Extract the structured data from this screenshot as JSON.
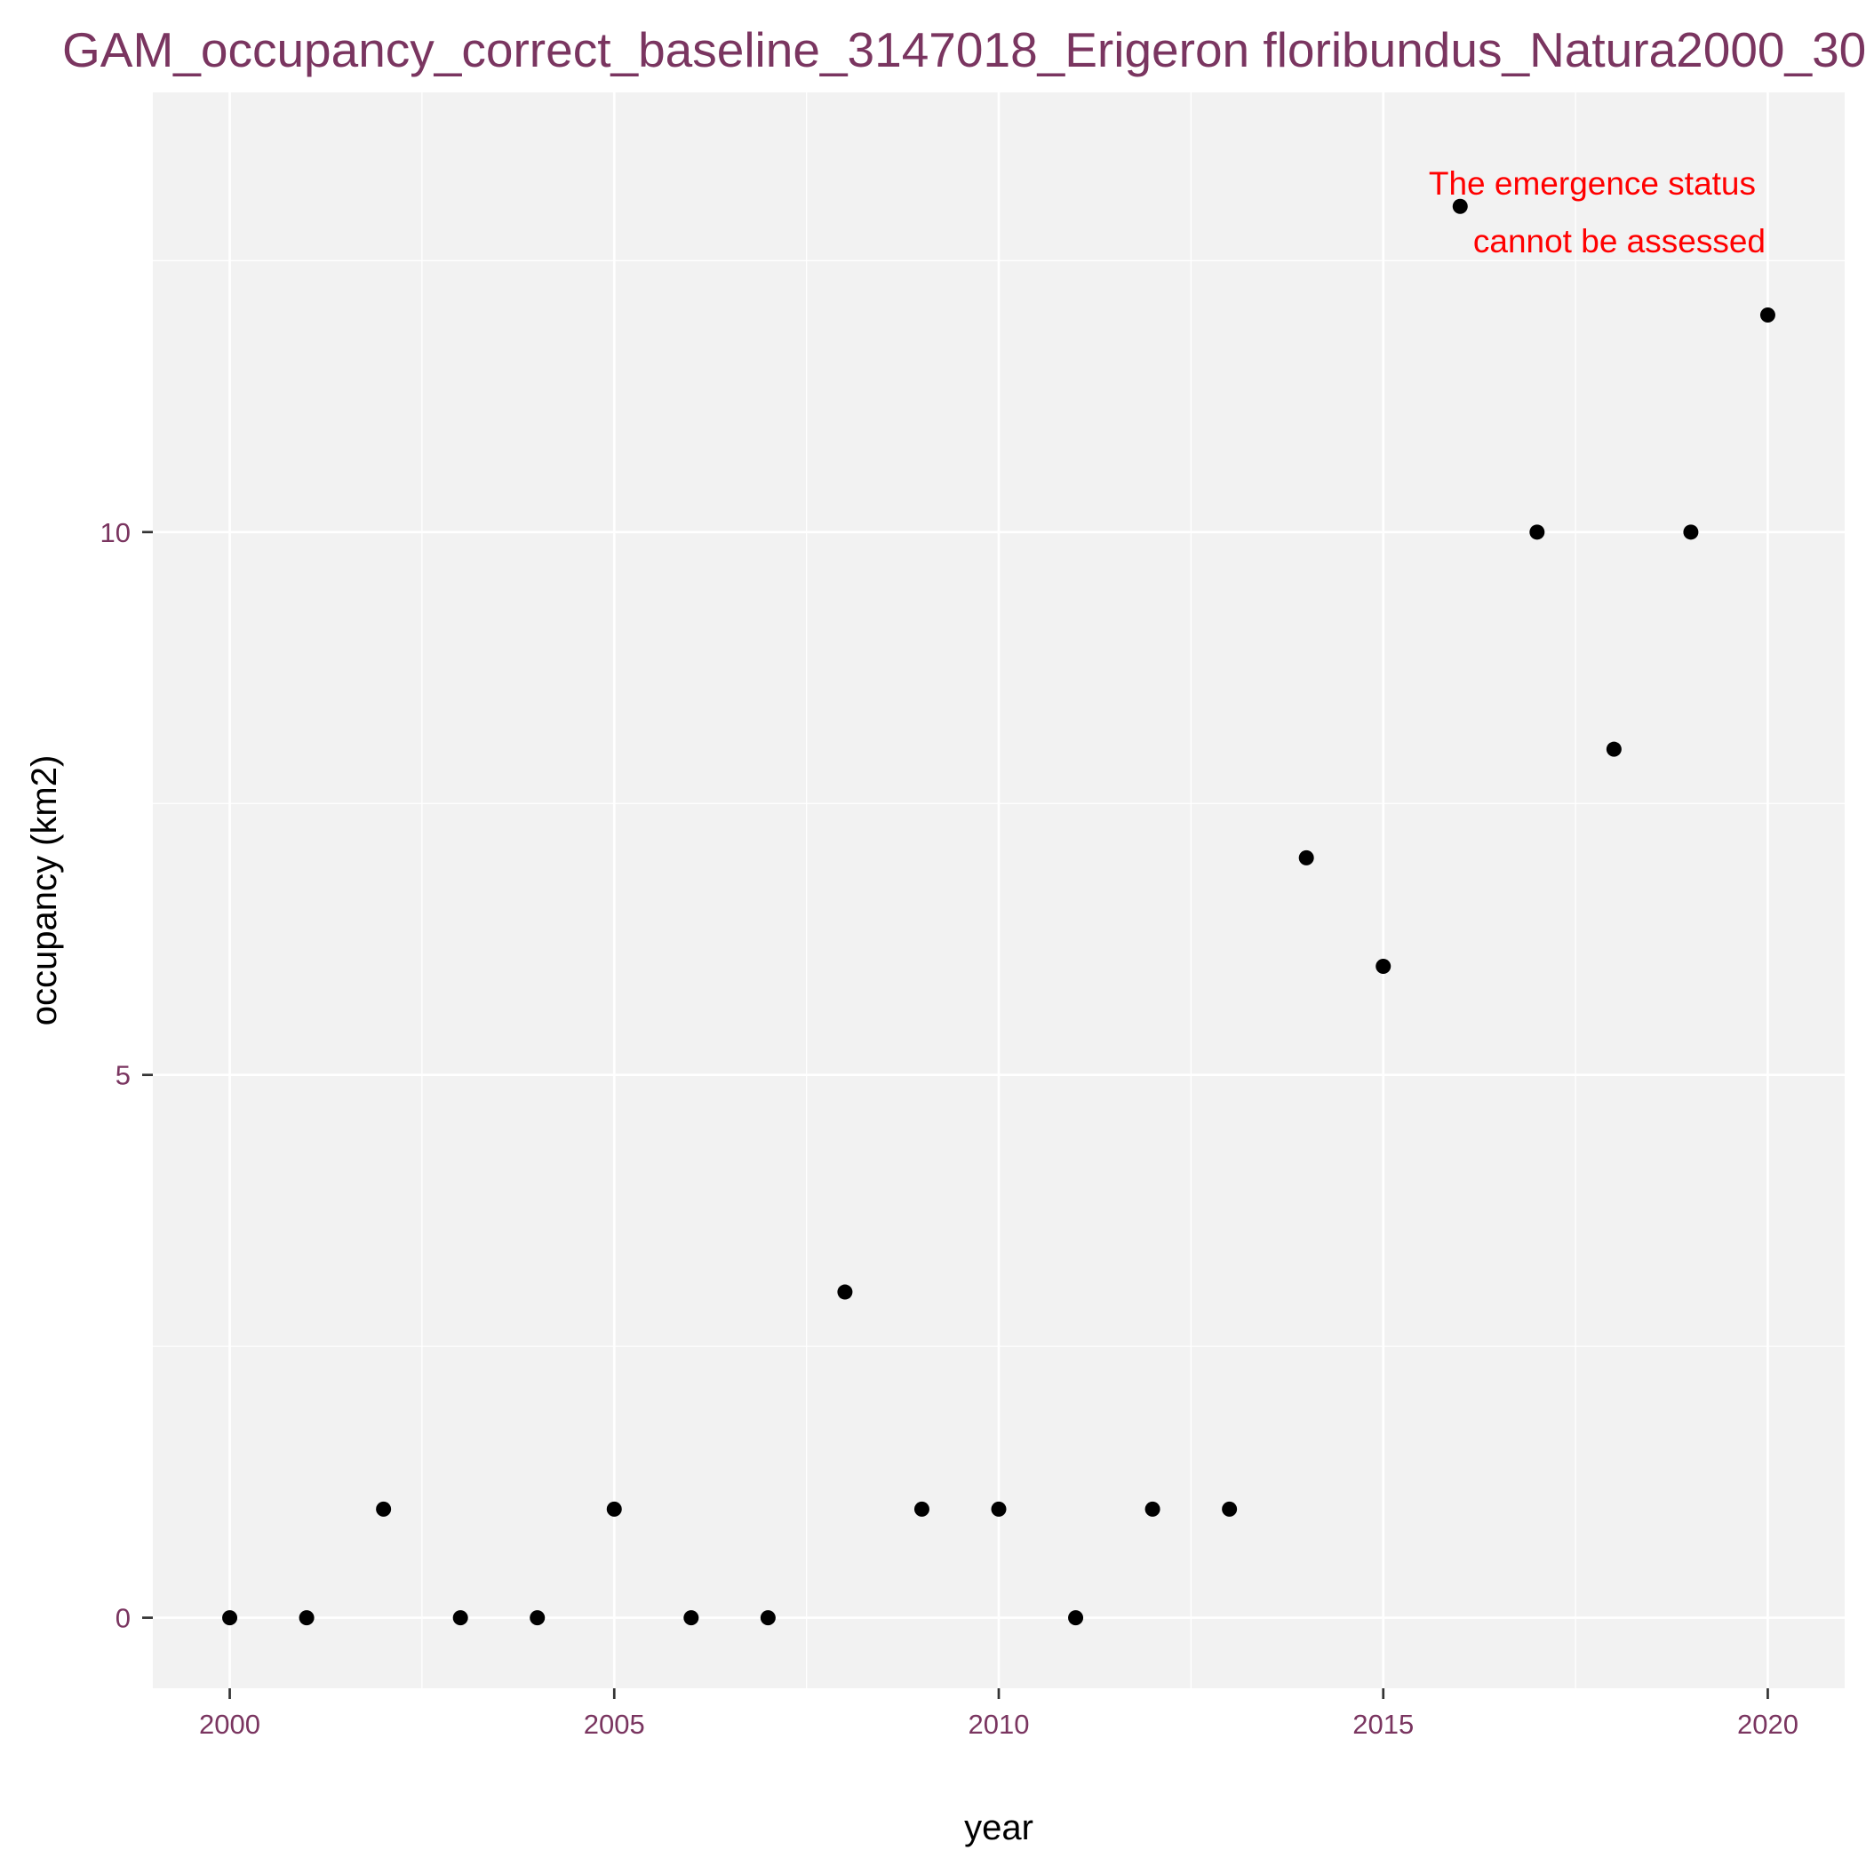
{
  "chart_data": {
    "type": "scatter",
    "title": "GAM_occupancy_correct_baseline_3147018_Erigeron floribundus_Natura2000_30...",
    "xlabel": "year",
    "ylabel": "occupancy (km2)",
    "x_ticks": [
      2000,
      2005,
      2010,
      2015,
      2020
    ],
    "y_ticks": [
      0,
      5,
      10
    ],
    "xlim": [
      1999,
      2021
    ],
    "ylim": [
      -0.65,
      14.05
    ],
    "annotation": [
      "The emergence status",
      "cannot be assessed"
    ],
    "annotation_position": "top-right",
    "grid": true,
    "x": [
      2000,
      2001,
      2002,
      2003,
      2004,
      2005,
      2006,
      2007,
      2008,
      2009,
      2010,
      2011,
      2012,
      2013,
      2014,
      2015,
      2016,
      2017,
      2018,
      2019,
      2020
    ],
    "y": [
      0,
      0,
      1,
      0,
      0,
      1,
      0,
      0,
      3,
      1,
      1,
      0,
      1,
      1,
      7,
      6,
      13,
      10,
      8,
      10,
      12
    ]
  },
  "colors": {
    "panel": "#f2f2f2",
    "grid": "#ffffff",
    "point": "#000000",
    "tick_label": "#7a3560",
    "title": "#7a3560",
    "annotation": "#ff0000"
  }
}
